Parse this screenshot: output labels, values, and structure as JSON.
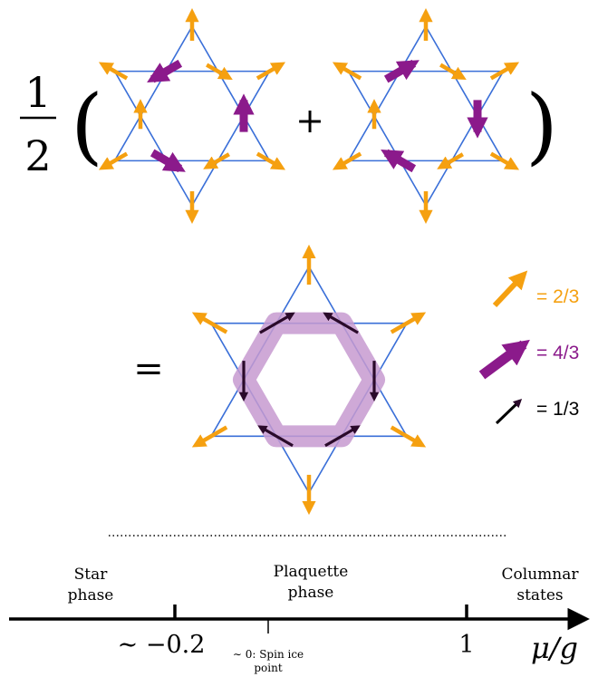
{
  "equation": {
    "fraction_numerator": "1",
    "fraction_denominator": "2",
    "open_paren": "(",
    "close_paren": ")",
    "plus": "+",
    "equals": "="
  },
  "legend": [
    {
      "label": "= 2/3",
      "color": "#f5a010"
    },
    {
      "label": "= 4/3",
      "color": "#8b1a8b"
    },
    {
      "label": "= 1/3",
      "color": "#000000"
    }
  ],
  "colors": {
    "lattice": "#3a6fd8",
    "orange_arrow": "#f5a010",
    "purple_arrow": "#8b1a8b",
    "plaquette_band": "#c79ad0",
    "black_arrow": "#2a0a2a"
  },
  "phase_diagram": {
    "phases": [
      {
        "line1": "Star",
        "line2": "phase"
      },
      {
        "line1": "Plaquette",
        "line2": "phase"
      },
      {
        "line1": "Columnar",
        "line2": "states"
      }
    ],
    "ticks": [
      {
        "label": "∼ −0.2"
      },
      {
        "label_line1": "∼ 0: Spin ice",
        "label_line2": "point"
      },
      {
        "label": "1"
      }
    ],
    "axis_label": "μ/g"
  }
}
